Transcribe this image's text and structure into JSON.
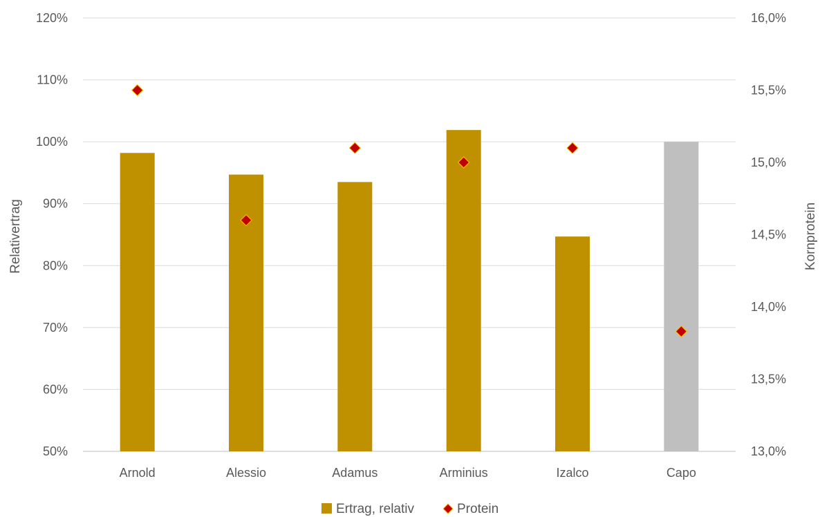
{
  "chart_data": {
    "type": "bar",
    "categories": [
      "Arnold",
      "Alessio",
      "Adamus",
      "Arminius",
      "Izalco",
      "Capo"
    ],
    "series": [
      {
        "name": "Ertrag, relativ",
        "type": "bar",
        "axis": "left",
        "values": [
          98.2,
          94.7,
          93.5,
          101.9,
          84.7,
          100
        ],
        "colors": [
          "#bf9000",
          "#bf9000",
          "#bf9000",
          "#bf9000",
          "#bf9000",
          "#bfbfbf"
        ]
      },
      {
        "name": "Protein",
        "type": "scatter",
        "axis": "right",
        "marker": "diamond",
        "values": [
          15.5,
          14.6,
          15.1,
          15.0,
          15.1,
          13.83
        ],
        "color": "#c00000",
        "edge_color": "#ffc000"
      }
    ],
    "ylabel": "Relativertrag",
    "y2label": "Kornprotein",
    "ylim": [
      50,
      120
    ],
    "y2lim": [
      13.0,
      16.0
    ],
    "yticks": [
      "50%",
      "60%",
      "70%",
      "80%",
      "90%",
      "100%",
      "110%",
      "120%"
    ],
    "y2ticks": [
      "13,0%",
      "13,5%",
      "14,0%",
      "14,5%",
      "15,0%",
      "15,5%",
      "16,0%"
    ],
    "grid": true,
    "legend_position": "bottom"
  }
}
